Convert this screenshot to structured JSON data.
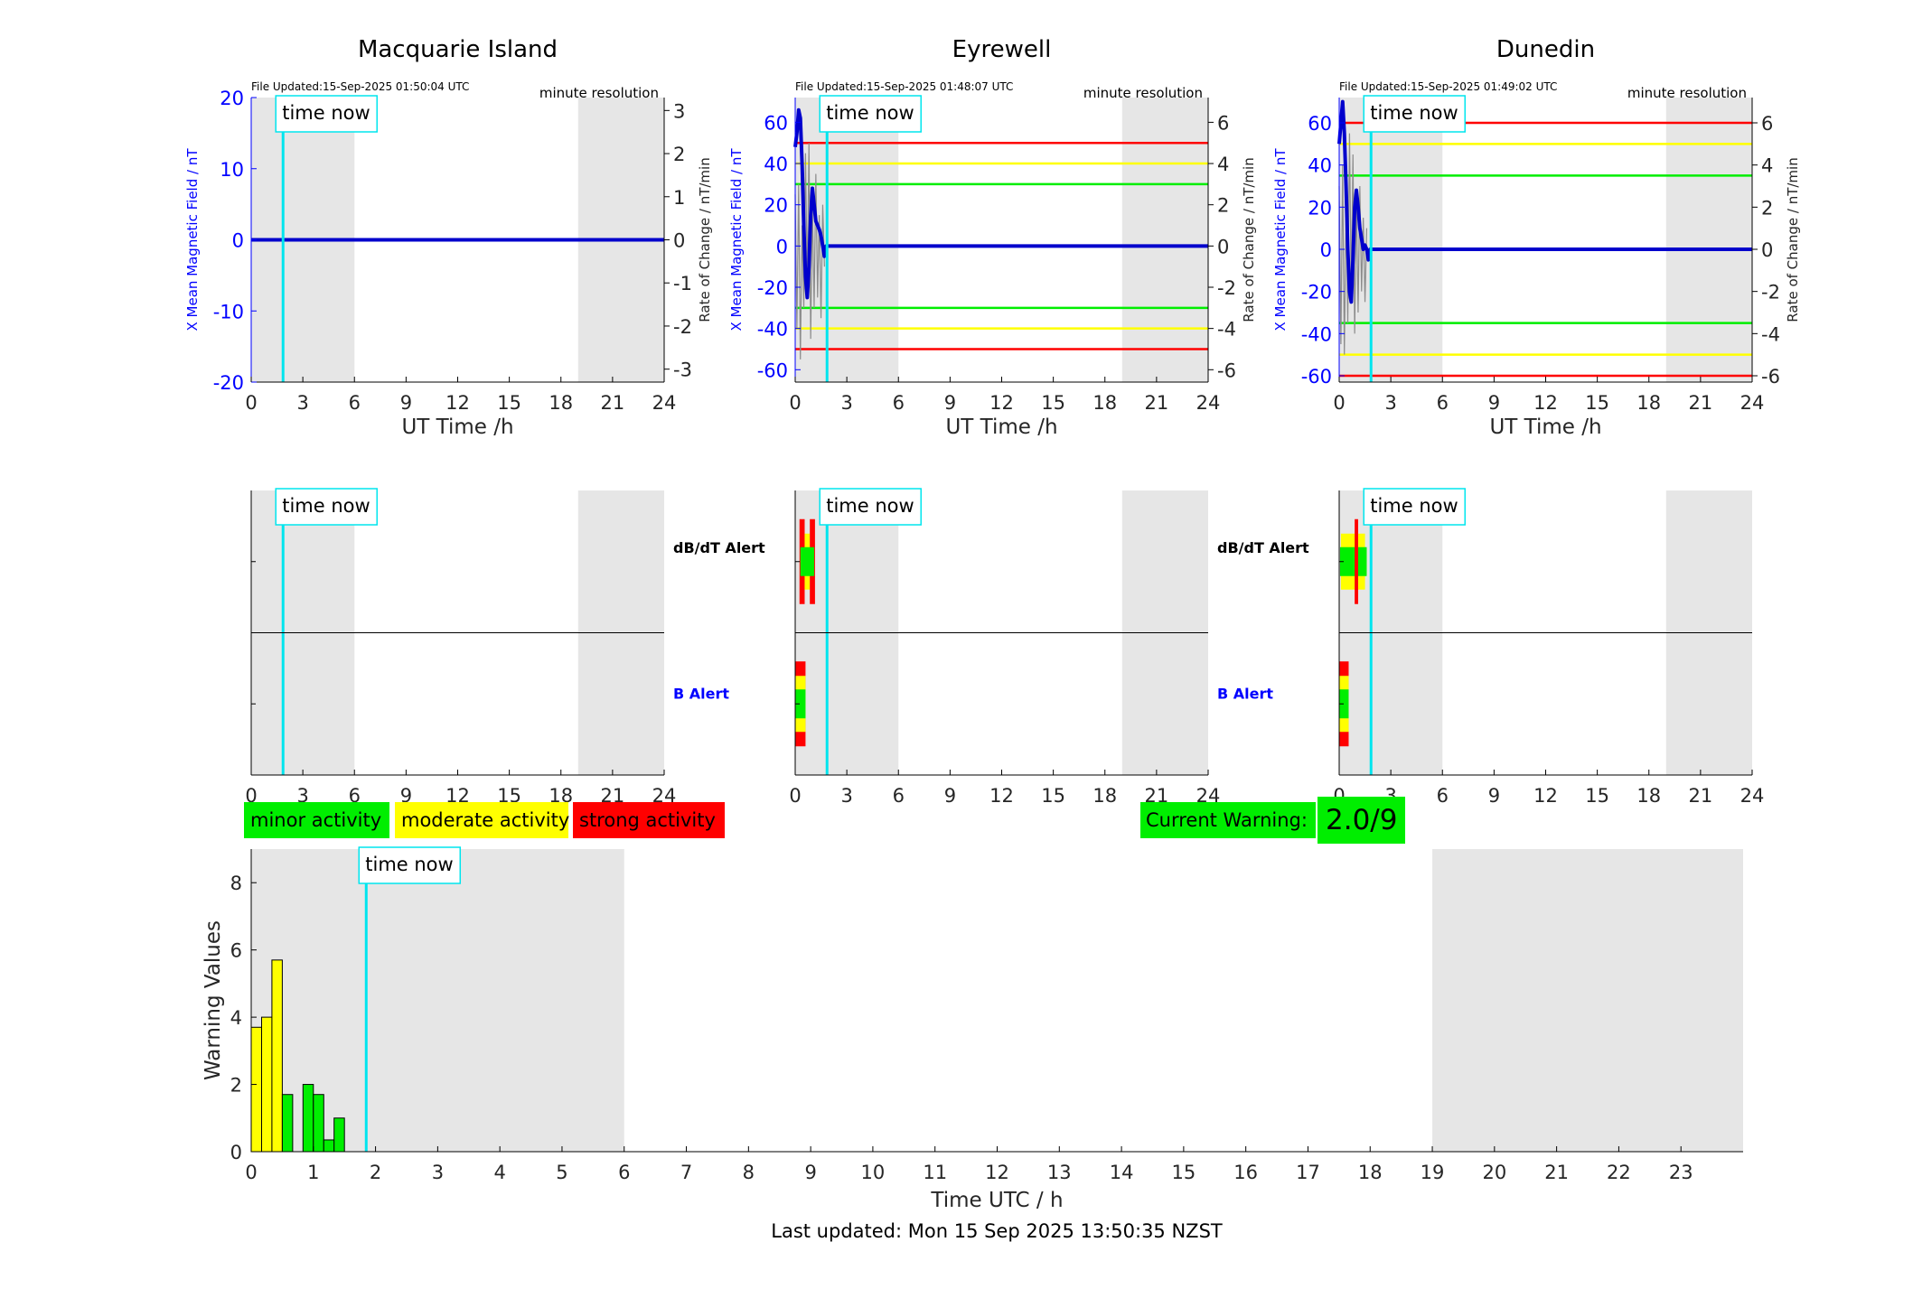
{
  "common": {
    "time_now_label": "time now",
    "time_now_hour": 1.85,
    "x_ticks_top": [
      0,
      3,
      6,
      9,
      12,
      15,
      18,
      21,
      24
    ],
    "top_xlabel": "UT Time /h",
    "resolution_label": "minute resolution",
    "left_ylabel": "X Mean Magnetic Field / nT",
    "right_ylabel": "Rate of Change / nT/min",
    "dbdt_label": "dB/dT Alert",
    "b_label": "B Alert",
    "shade_hours": [
      [
        0,
        6
      ],
      [
        19,
        24
      ]
    ]
  },
  "colors": {
    "field_line": "#0000cc",
    "time_now": "#00e5ee",
    "minor": "#00ee00",
    "moderate": "#ffff00",
    "strong": "#ff0000",
    "shade": "#e6e6e6",
    "axis_blue": "#0000ff"
  },
  "stations": [
    {
      "name": "Macquarie Island",
      "file_updated": "File Updated:15-Sep-2025 01:50:04 UTC",
      "show_alert_labels": false,
      "left_ticks": [
        20,
        10,
        0,
        -10,
        -20
      ],
      "left_lim": [
        -20,
        20
      ],
      "right_ticks": [
        3,
        2,
        1,
        0,
        -1,
        -2,
        -3
      ],
      "right_lim": [
        -3.3,
        3.3
      ],
      "thresholds": [],
      "field_series_hours": [
        0,
        24
      ],
      "field_series_values": [
        0,
        0
      ],
      "roc_series_hours": [],
      "roc_series_values": [],
      "dbdt_alert": [],
      "b_alert": []
    },
    {
      "name": "Eyrewell",
      "file_updated": "File Updated:15-Sep-2025 01:48:07 UTC",
      "show_alert_labels": true,
      "left_ticks": [
        60,
        40,
        20,
        0,
        -20,
        -40,
        -60
      ],
      "left_lim": [
        -66,
        72
      ],
      "right_ticks": [
        6,
        4,
        2,
        0,
        -2,
        -4,
        -6
      ],
      "right_lim": [
        -6.6,
        7.2
      ],
      "thresholds": [
        {
          "value": 50,
          "level": "strong"
        },
        {
          "value": 40,
          "level": "moderate"
        },
        {
          "value": 30,
          "level": "minor"
        },
        {
          "value": -30,
          "level": "minor"
        },
        {
          "value": -40,
          "level": "moderate"
        },
        {
          "value": -50,
          "level": "strong"
        }
      ],
      "field_series_hours": [
        0,
        0.1,
        0.2,
        0.3,
        0.4,
        0.5,
        0.6,
        0.7,
        0.8,
        0.9,
        1.0,
        1.1,
        1.2,
        1.3,
        1.4,
        1.5,
        1.6,
        1.7,
        1.8,
        1.9,
        24
      ],
      "field_series_values": [
        48,
        55,
        66,
        62,
        40,
        10,
        -15,
        -25,
        -10,
        15,
        28,
        20,
        12,
        10,
        8,
        5,
        0,
        -5,
        0,
        0,
        0
      ],
      "roc_series_hours": [
        0,
        0.1,
        0.2,
        0.3,
        0.4,
        0.5,
        0.6,
        0.7,
        0.8,
        0.9,
        1.0,
        1.1,
        1.2,
        1.3,
        1.4,
        1.5,
        1.6,
        1.7
      ],
      "roc_series_values": [
        2.5,
        -4,
        3,
        -5.5,
        1,
        -3,
        4.5,
        -2,
        5,
        -4.5,
        2,
        -3,
        3.5,
        -2.5,
        1.5,
        -3.5,
        2,
        -1
      ],
      "dbdt_alert": [
        {
          "start": 0.25,
          "end": 0.55,
          "level": "strong"
        },
        {
          "start": 0.55,
          "end": 0.85,
          "level": "moderate"
        },
        {
          "start": 0.85,
          "end": 1.15,
          "level": "strong"
        },
        {
          "start": 0.3,
          "end": 1.1,
          "level": "minor"
        }
      ],
      "b_alert": [
        {
          "start": 0,
          "end": 0.6,
          "level": "strong"
        },
        {
          "start": 0,
          "end": 0.6,
          "level": "moderate"
        },
        {
          "start": 0,
          "end": 0.6,
          "level": "minor"
        }
      ]
    },
    {
      "name": "Dunedin",
      "file_updated": "File Updated:15-Sep-2025 01:49:02 UTC",
      "show_alert_labels": true,
      "left_ticks": [
        60,
        40,
        20,
        0,
        -20,
        -40,
        -60
      ],
      "left_lim": [
        -63,
        72
      ],
      "right_ticks": [
        6,
        4,
        2,
        0,
        -2,
        -4,
        -6
      ],
      "right_lim": [
        -6.3,
        7.2
      ],
      "thresholds": [
        {
          "value": 60,
          "level": "strong"
        },
        {
          "value": 50,
          "level": "moderate"
        },
        {
          "value": 35,
          "level": "minor"
        },
        {
          "value": -35,
          "level": "minor"
        },
        {
          "value": -50,
          "level": "moderate"
        },
        {
          "value": -60,
          "level": "strong"
        }
      ],
      "field_series_hours": [
        0,
        0.1,
        0.2,
        0.3,
        0.4,
        0.5,
        0.6,
        0.7,
        0.8,
        0.9,
        1.0,
        1.1,
        1.2,
        1.3,
        1.4,
        1.5,
        1.6,
        1.7,
        1.8,
        24
      ],
      "field_series_values": [
        50,
        60,
        70,
        55,
        30,
        0,
        -20,
        -25,
        -5,
        20,
        28,
        20,
        10,
        5,
        0,
        2,
        0,
        -5,
        0,
        0
      ],
      "roc_series_hours": [
        0,
        0.1,
        0.2,
        0.3,
        0.4,
        0.5,
        0.6,
        0.7,
        0.8,
        0.9,
        1.0,
        1.1,
        1.2,
        1.3,
        1.4,
        1.5,
        1.6
      ],
      "roc_series_values": [
        3,
        -4.5,
        4,
        -5,
        2,
        -3.5,
        5.5,
        -2,
        4.5,
        -4,
        2.5,
        -3,
        3,
        -2,
        1.5,
        -2.5,
        1
      ],
      "dbdt_alert": [
        {
          "start": 0.1,
          "end": 1.5,
          "level": "moderate"
        },
        {
          "start": 0.05,
          "end": 1.6,
          "level": "minor"
        },
        {
          "start": 0.9,
          "end": 1.1,
          "level": "strong"
        }
      ],
      "b_alert": [
        {
          "start": 0,
          "end": 0.55,
          "level": "strong"
        },
        {
          "start": 0,
          "end": 0.55,
          "level": "moderate"
        },
        {
          "start": 0,
          "end": 0.55,
          "level": "minor"
        }
      ]
    }
  ],
  "legend": [
    {
      "label": "minor activity",
      "level": "minor"
    },
    {
      "label": "moderate activity",
      "level": "moderate"
    },
    {
      "label": "strong activity",
      "level": "strong"
    }
  ],
  "current_warning": {
    "label": "Current Warning:",
    "value": "2.0/9"
  },
  "chart_data": {
    "type": "bar",
    "xlabel": "Time UTC / h",
    "ylabel": "Warning Values",
    "ylim": [
      0,
      9
    ],
    "xlim": [
      0,
      24
    ],
    "y_ticks": [
      0,
      2,
      4,
      6,
      8
    ],
    "x_ticks": [
      0,
      1,
      2,
      3,
      4,
      5,
      6,
      7,
      8,
      9,
      10,
      11,
      12,
      13,
      14,
      15,
      16,
      17,
      18,
      19,
      20,
      21,
      22,
      23
    ],
    "shade_hours": [
      [
        0,
        6
      ],
      [
        19,
        24
      ]
    ],
    "bars": [
      {
        "hour": 0.0,
        "value": 3.7,
        "level": "moderate"
      },
      {
        "hour": 0.167,
        "value": 4.0,
        "level": "moderate"
      },
      {
        "hour": 0.333,
        "value": 5.7,
        "level": "moderate"
      },
      {
        "hour": 0.5,
        "value": 1.7,
        "level": "minor"
      },
      {
        "hour": 0.833,
        "value": 2.0,
        "level": "minor"
      },
      {
        "hour": 1.0,
        "value": 1.7,
        "level": "minor"
      },
      {
        "hour": 1.167,
        "value": 0.35,
        "level": "minor"
      },
      {
        "hour": 1.333,
        "value": 1.0,
        "level": "minor"
      }
    ],
    "bar_width_hours": 0.167
  },
  "last_updated": "Last updated: Mon 15 Sep 2025 13:50:35 NZST"
}
